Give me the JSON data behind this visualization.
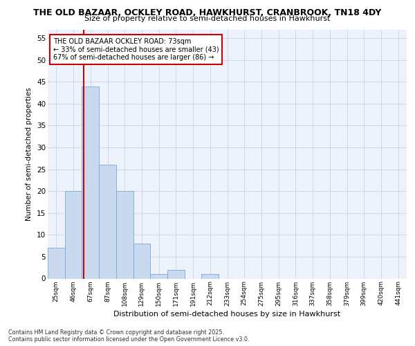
{
  "title_line1": "THE OLD BAZAAR, OCKLEY ROAD, HAWKHURST, CRANBROOK, TN18 4DY",
  "title_line2": "Size of property relative to semi-detached houses in Hawkhurst",
  "xlabel": "Distribution of semi-detached houses by size in Hawkhurst",
  "ylabel": "Number of semi-detached properties",
  "categories": [
    "25sqm",
    "46sqm",
    "67sqm",
    "87sqm",
    "108sqm",
    "129sqm",
    "150sqm",
    "171sqm",
    "191sqm",
    "212sqm",
    "233sqm",
    "254sqm",
    "275sqm",
    "295sqm",
    "316sqm",
    "337sqm",
    "358sqm",
    "379sqm",
    "399sqm",
    "420sqm",
    "441sqm"
  ],
  "values": [
    7,
    20,
    44,
    26,
    20,
    8,
    1,
    2,
    0,
    1,
    0,
    0,
    0,
    0,
    0,
    0,
    0,
    0,
    0,
    0,
    0
  ],
  "bar_color": "#c9d9f0",
  "bar_edge_color": "#7aa8d4",
  "vline_color": "#cc0000",
  "vline_x_index": 1.62,
  "annotation_line1": "THE OLD BAZAAR OCKLEY ROAD: 73sqm",
  "annotation_line2": "← 33% of semi-detached houses are smaller (43)",
  "annotation_line3": "67% of semi-detached houses are larger (86) →",
  "annotation_box_facecolor": "#ffffff",
  "annotation_box_edgecolor": "#cc0000",
  "ylim": [
    0,
    57
  ],
  "yticks": [
    0,
    5,
    10,
    15,
    20,
    25,
    30,
    35,
    40,
    45,
    50,
    55
  ],
  "background_color": "#eef2fb",
  "grid_color": "#c8d4e8",
  "footer_line1": "Contains HM Land Registry data © Crown copyright and database right 2025.",
  "footer_line2": "Contains public sector information licensed under the Open Government Licence v3.0."
}
